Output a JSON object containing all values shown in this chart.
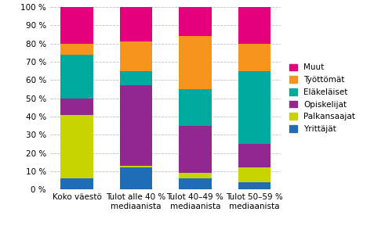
{
  "categories": [
    "Koko väestö",
    "Tulot alle 40 %\nmediaanista",
    "Tulot 40–49 %\nmediaanista",
    "Tulot 50–59 %\nmediaanista"
  ],
  "series": [
    {
      "label": "Yrittäjät",
      "color": "#1f6db5",
      "values": [
        6,
        12,
        6,
        4
      ]
    },
    {
      "label": "Palkansaajat",
      "color": "#c8d400",
      "values": [
        35,
        1,
        3,
        8
      ]
    },
    {
      "label": "Opiskelijat",
      "color": "#92278f",
      "values": [
        9,
        44,
        26,
        13
      ]
    },
    {
      "label": "Eläkeläiset",
      "color": "#00a99d",
      "values": [
        24,
        8,
        20,
        40
      ]
    },
    {
      "label": "Työttömät",
      "color": "#f7941d",
      "values": [
        6,
        16,
        29,
        15
      ]
    },
    {
      "label": "Muut",
      "color": "#e4007c",
      "values": [
        20,
        19,
        16,
        20
      ]
    }
  ],
  "ylim": [
    0,
    100
  ],
  "yticks": [
    0,
    10,
    20,
    30,
    40,
    50,
    60,
    70,
    80,
    90,
    100
  ],
  "ytick_labels": [
    "0 %",
    "10 %",
    "20 %",
    "30 %",
    "40 %",
    "50 %",
    "60 %",
    "70 %",
    "80 %",
    "90 %",
    "100 %"
  ],
  "background_color": "#ffffff",
  "grid_color": "#c0c0c0"
}
